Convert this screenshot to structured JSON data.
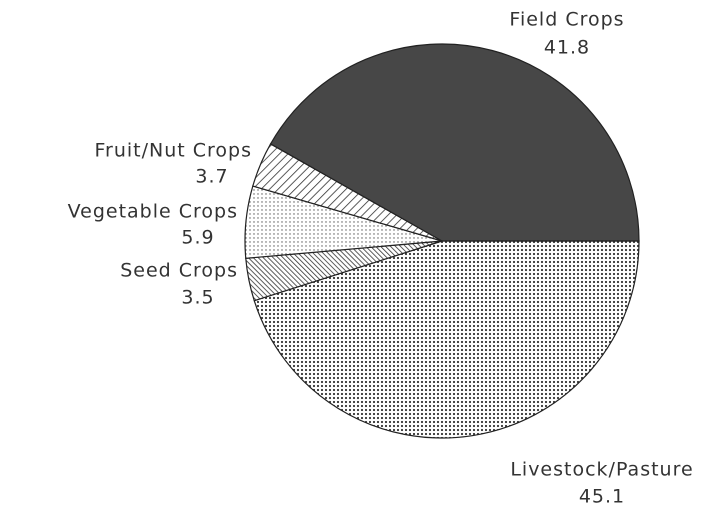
{
  "chart_data": {
    "type": "pie",
    "categories": [
      "Livestock/Pasture",
      "Seed Crops",
      "Vegetable Crops",
      "Fruit/Nut Crops",
      "Field Crops"
    ],
    "values": [
      45.1,
      3.5,
      5.9,
      3.7,
      41.8
    ],
    "patterns": [
      "dots",
      "dense-hatch",
      "light-dots",
      "hatch",
      "solid"
    ],
    "colors": [
      "#333333",
      "#333333",
      "#555555",
      "#333333",
      "#474747"
    ]
  }
}
